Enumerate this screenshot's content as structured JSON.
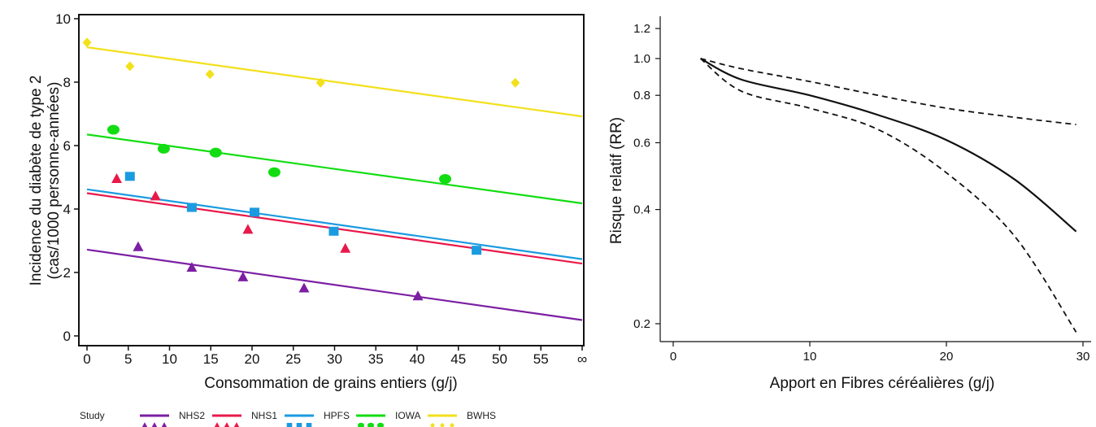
{
  "charts": [
    {
      "type": "scatter",
      "xlabel": "Consommation de grains entiers (g/j)",
      "ylabel_line1": "Incidence du diabète de type 2",
      "ylabel_line2": "(cas/1000 personne-années)",
      "xlim": [
        0,
        60
      ],
      "ylim": [
        0,
        10
      ],
      "x_ticks": [
        "0",
        "5",
        "10",
        "15",
        "20",
        "25",
        "30",
        "35",
        "40",
        "45",
        "50",
        "55",
        "∞"
      ],
      "y_ticks": [
        0,
        2,
        4,
        6,
        8,
        10
      ],
      "legend_title": "Study",
      "legend_position": "bottom",
      "series": [
        {
          "name": "NHS2",
          "color": "#7b1fa2",
          "marker": "triangle",
          "x": [
            6.2,
            12.7,
            18.9,
            26.3,
            40.1
          ],
          "y": [
            2.8,
            2.15,
            1.85,
            1.5,
            1.25
          ],
          "fit": [
            [
              0,
              2.72
            ],
            [
              60,
              0.5
            ]
          ]
        },
        {
          "name": "NHS1",
          "color": "#e8194a",
          "marker": "triangle",
          "x": [
            3.6,
            8.3,
            19.5,
            31.3
          ],
          "y": [
            4.95,
            4.4,
            3.35,
            2.75
          ],
          "fit": [
            [
              0,
              4.5
            ],
            [
              60,
              2.28
            ]
          ]
        },
        {
          "name": "HPFS",
          "color": "#1a9be0",
          "marker": "square",
          "x": [
            5.2,
            12.7,
            20.3,
            29.9,
            47.2
          ],
          "y": [
            5.03,
            4.05,
            3.9,
            3.3,
            2.7
          ],
          "fit": [
            [
              0,
              4.62
            ],
            [
              60,
              2.42
            ]
          ]
        },
        {
          "name": "IOWA",
          "color": "#12dd12",
          "marker": "ellipse",
          "x": [
            3.2,
            9.3,
            15.6,
            22.7,
            43.4
          ],
          "y": [
            6.5,
            5.9,
            5.78,
            5.16,
            4.95
          ],
          "fit": [
            [
              0,
              6.35
            ],
            [
              60,
              4.18
            ]
          ]
        },
        {
          "name": "BWHS",
          "color": "#f2e01a",
          "marker": "diamond",
          "x": [
            0,
            5.2,
            14.9,
            28.3,
            51.9
          ],
          "y": [
            9.25,
            8.5,
            8.25,
            7.98,
            7.98
          ],
          "fit": [
            [
              0,
              9.1
            ],
            [
              60,
              6.92
            ]
          ]
        }
      ]
    },
    {
      "type": "line",
      "xlabel": "Apport en Fibres céréalières (g/j)",
      "ylabel": "Risque relatif (RR)",
      "xlim": [
        0,
        30
      ],
      "ylim": [
        0.18,
        1.3
      ],
      "yscale": "log",
      "x_ticks": [
        0,
        10,
        20,
        30
      ],
      "y_ticks": [
        "0.2",
        "0.4",
        "0.6",
        "0.8",
        "1.0",
        "1.2"
      ],
      "series": [
        {
          "style": "solid",
          "x": [
            2,
            5,
            10,
            15,
            20,
            25,
            29.5
          ],
          "y": [
            1.0,
            0.88,
            0.8,
            0.71,
            0.61,
            0.48,
            0.35
          ]
        },
        {
          "style": "dashed",
          "x": [
            2,
            5,
            10,
            15,
            20,
            25,
            29.5
          ],
          "y": [
            1.0,
            0.94,
            0.87,
            0.8,
            0.74,
            0.7,
            0.67
          ]
        },
        {
          "style": "dashed",
          "x": [
            2,
            5,
            10,
            15,
            20,
            25,
            29.5
          ],
          "y": [
            1.0,
            0.82,
            0.74,
            0.65,
            0.5,
            0.34,
            0.19
          ]
        }
      ]
    }
  ]
}
